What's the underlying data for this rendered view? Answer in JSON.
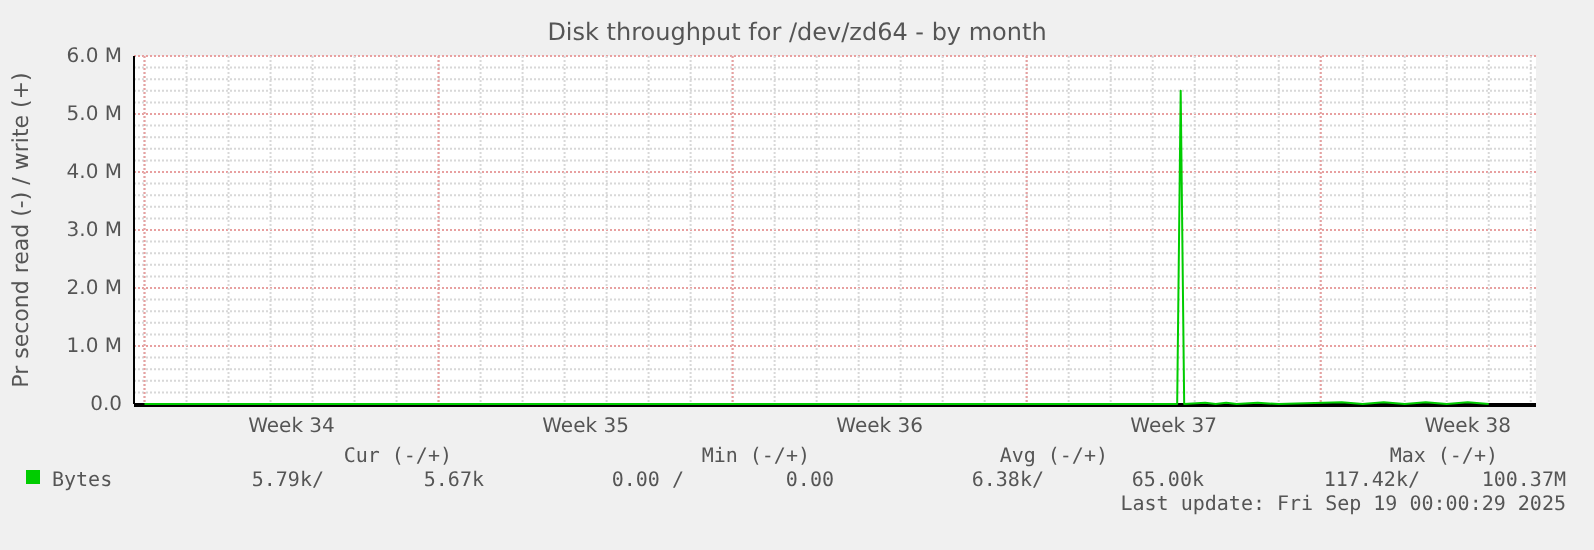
{
  "chart_data": {
    "type": "line",
    "title": "Disk throughput for /dev/zd64 - by month",
    "ylabel": "Pr second read (-) / write (+)",
    "x": [
      "2025-08-18T00:00",
      "2025-08-20T00:00",
      "2025-08-22T00:00",
      "2025-08-24T00:00",
      "2025-08-26T00:00",
      "2025-08-28T00:00",
      "2025-08-30T00:00",
      "2025-09-01T00:00",
      "2025-09-03T00:00",
      "2025-09-05T00:00",
      "2025-09-07T00:00",
      "2025-09-09T00:00",
      "2025-09-11T00:00",
      "2025-09-11T14:00",
      "2025-09-11T16:00",
      "2025-09-11T18:00",
      "2025-09-12T06:00",
      "2025-09-12T12:00",
      "2025-09-12T18:00",
      "2025-09-13T00:00",
      "2025-09-13T12:00",
      "2025-09-14T00:00",
      "2025-09-15T12:00",
      "2025-09-16T00:00",
      "2025-09-16T12:00",
      "2025-09-17T00:00",
      "2025-09-17T12:00",
      "2025-09-18T00:00",
      "2025-09-18T12:00",
      "2025-09-19T00:00"
    ],
    "series": [
      {
        "name": "Bytes",
        "color": "#00cc00",
        "values": [
          0,
          0,
          0,
          0,
          0,
          0,
          0,
          0,
          0,
          0,
          0,
          0,
          0,
          0,
          5400000,
          0,
          20000,
          0,
          20000,
          0,
          20000,
          0,
          30000,
          0,
          30000,
          0,
          30000,
          0,
          30000,
          0
        ]
      }
    ],
    "xlim": [
      "2025-08-17T18:00",
      "2025-09-20T03:00"
    ],
    "xticks": [
      {
        "value": "2025-08-21T12:00",
        "label": "Week 34"
      },
      {
        "value": "2025-08-28T12:00",
        "label": "Week 35"
      },
      {
        "value": "2025-09-04T12:00",
        "label": "Week 36"
      },
      {
        "value": "2025-09-11T12:00",
        "label": "Week 37"
      },
      {
        "value": "2025-09-18T12:00",
        "label": "Week 38"
      }
    ],
    "ylim": [
      0,
      6000000
    ],
    "yticks": [
      {
        "value": 0,
        "label": "0.0"
      },
      {
        "value": 1000000,
        "label": "1.0 M"
      },
      {
        "value": 2000000,
        "label": "2.0 M"
      },
      {
        "value": 3000000,
        "label": "3.0 M"
      },
      {
        "value": 4000000,
        "label": "4.0 M"
      },
      {
        "value": 5000000,
        "label": "5.0 M"
      },
      {
        "value": 6000000,
        "label": "6.0 M"
      }
    ],
    "grid": true,
    "legend": "bottom",
    "annotations": [
      "Cur (-/+)",
      "Min (-/+)",
      "Avg (-/+)",
      "Max (-/+)",
      "5.79k/",
      "5.67k",
      "0.00 /",
      "0.00",
      "6.38k/",
      "65.00k",
      "117.42k/",
      "100.37M",
      "Last update: Fri Sep 19 00:00:29 2025"
    ]
  }
}
